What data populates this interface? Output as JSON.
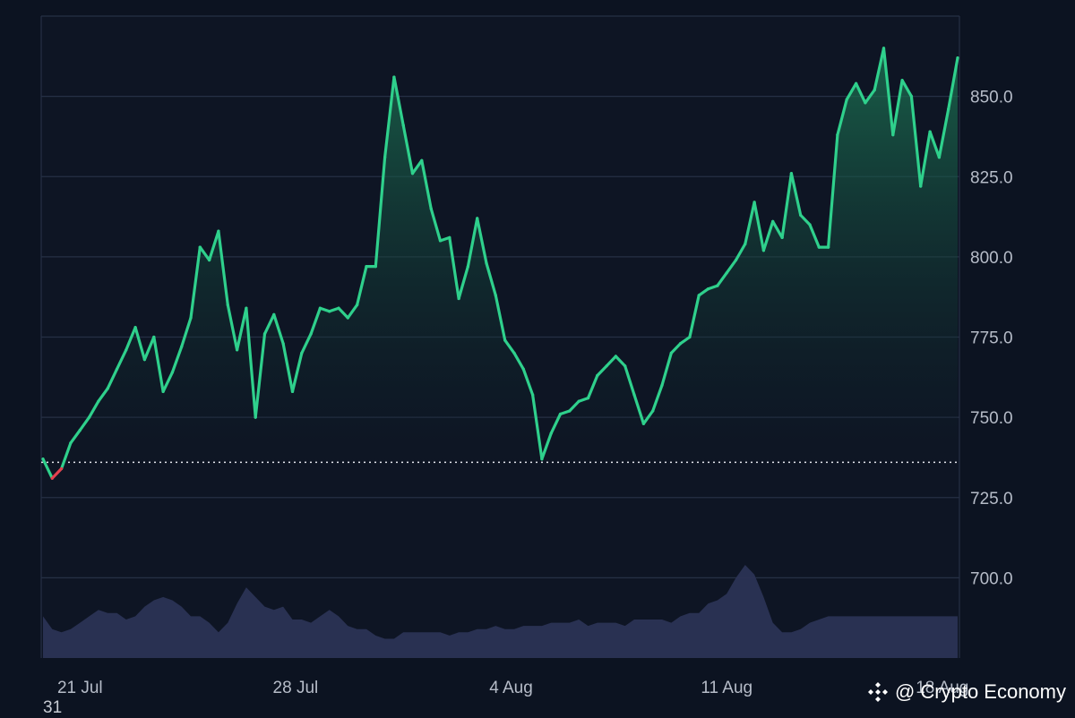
{
  "chart_data": {
    "type": "area",
    "x_labels": [
      "21 Jul",
      "28 Jul",
      "4 Aug",
      "11 Aug",
      "18 Aug"
    ],
    "y_ticks": [
      700.0,
      725.0,
      750.0,
      775.0,
      800.0,
      825.0,
      850.0
    ],
    "ylim": [
      675,
      875
    ],
    "baseline": 736,
    "grid": true,
    "line_color_up": "#2fd08c",
    "line_color_down": "#e3414f",
    "volume_color": "#2b3355",
    "x": [
      0,
      0.3,
      0.6,
      0.9,
      1.2,
      1.5,
      1.8,
      2.1,
      2.4,
      2.7,
      3.0,
      3.3,
      3.6,
      3.9,
      4.2,
      4.5,
      4.8,
      5.1,
      5.4,
      5.7,
      6.0,
      6.3,
      6.6,
      6.9,
      7.2,
      7.5,
      7.8,
      8.1,
      8.4,
      8.7,
      9.0,
      9.3,
      9.6,
      9.9,
      10.2,
      10.5,
      10.8,
      11.1,
      11.4,
      11.7,
      12.0,
      12.3,
      12.6,
      12.9,
      13.2,
      13.5,
      13.8,
      14.1,
      14.4,
      14.7,
      15.0,
      15.3,
      15.6,
      15.9,
      16.2,
      16.5,
      16.8,
      17.1,
      17.4,
      17.7,
      18.0,
      18.3,
      18.6,
      18.9,
      19.2,
      19.5,
      19.8,
      20.1,
      20.4,
      20.7,
      21.0,
      21.3,
      21.6,
      21.9,
      22.2,
      22.5,
      22.8,
      23.1,
      23.4,
      23.7,
      24.0,
      24.3,
      24.6,
      24.9,
      25.2,
      25.5,
      25.8,
      26.1,
      26.4,
      26.7,
      27.0,
      27.3,
      27.6,
      27.9,
      28.2,
      28.5,
      28.8,
      29.1,
      29.4,
      29.7
    ],
    "values": [
      737,
      731,
      734,
      742,
      746,
      750,
      755,
      759,
      765,
      771,
      778,
      768,
      775,
      758,
      764,
      772,
      781,
      803,
      799,
      808,
      785,
      771,
      784,
      750,
      776,
      782,
      773,
      758,
      770,
      776,
      784,
      783,
      784,
      781,
      785,
      797,
      797,
      831,
      856,
      841,
      826,
      830,
      815,
      805,
      806,
      787,
      797,
      812,
      798,
      788,
      774,
      770,
      765,
      757,
      737,
      745,
      751,
      752,
      755,
      756,
      763,
      766,
      769,
      766,
      757,
      748,
      752,
      760,
      770,
      773,
      775,
      788,
      790,
      791,
      795,
      799,
      804,
      817,
      802,
      811,
      806,
      826,
      813,
      810,
      803,
      803,
      838,
      849,
      854,
      848,
      852,
      865,
      838,
      855,
      850,
      822,
      839,
      831,
      846,
      862
    ],
    "volume": [
      688,
      684,
      683,
      684,
      686,
      688,
      690,
      689,
      689,
      687,
      688,
      691,
      693,
      694,
      693,
      691,
      688,
      688,
      686,
      683,
      686,
      692,
      697,
      694,
      691,
      690,
      691,
      687,
      687,
      686,
      688,
      690,
      688,
      685,
      684,
      684,
      682,
      681,
      681,
      683,
      683,
      683,
      683,
      683,
      682,
      683,
      683,
      684,
      684,
      685,
      684,
      684,
      685,
      685,
      685,
      686,
      686,
      686,
      687,
      685,
      686,
      686,
      686,
      685,
      687,
      687,
      687,
      687,
      686,
      688,
      689,
      689,
      692,
      693,
      695,
      700,
      704,
      701,
      694,
      686,
      683,
      683,
      684,
      686,
      687,
      688,
      688,
      688,
      688,
      688,
      688,
      688,
      688,
      688,
      688,
      688,
      688,
      688,
      688,
      688
    ]
  },
  "axis": {
    "corner_label": "31"
  },
  "watermark": {
    "text": "@ Crypto Economy"
  }
}
